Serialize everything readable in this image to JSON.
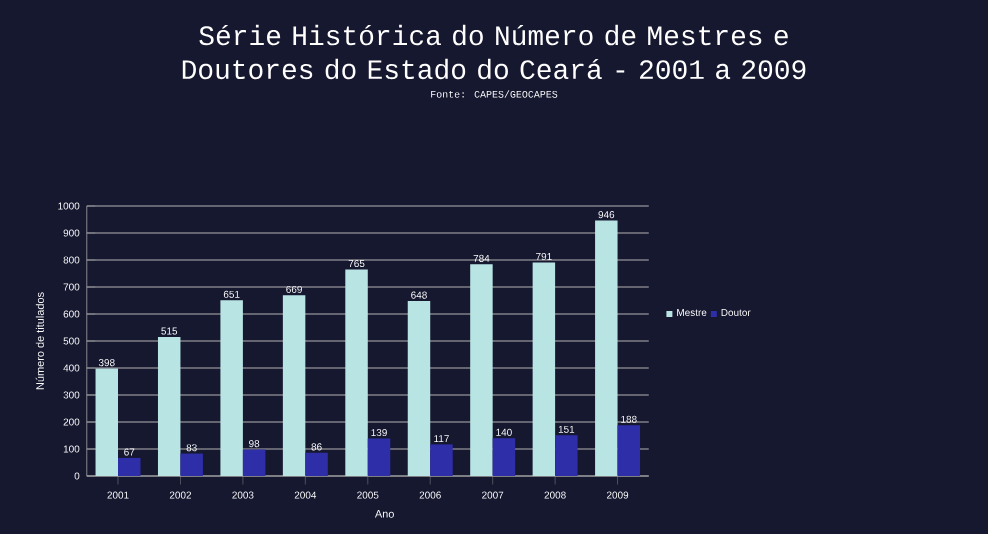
{
  "chart_data": {
    "type": "bar",
    "title": "Série Histórica do Número de Mestres e Doutores do Estado do Ceará - 2001 a 2009",
    "subtitle": "Fonte: CAPES/GEOCAPES",
    "xlabel": "Ano",
    "ylabel": "Número de titulados",
    "categories": [
      "2001",
      "2002",
      "2003",
      "2004",
      "2005",
      "2006",
      "2007",
      "2008",
      "2009"
    ],
    "series": [
      {
        "name": "Mestre",
        "color": "#b9e4e4",
        "values": [
          398,
          515,
          651,
          669,
          765,
          648,
          784,
          791,
          946
        ]
      },
      {
        "name": "Doutor",
        "color": "#2e2ea8",
        "values": [
          67,
          83,
          98,
          86,
          139,
          117,
          140,
          151,
          188
        ]
      }
    ],
    "ylim": [
      0,
      1000
    ],
    "yticks": [
      0,
      100,
      200,
      300,
      400,
      500,
      600,
      700,
      800,
      900,
      1000
    ],
    "grid": "y",
    "legend": "right",
    "data_labels": true
  }
}
